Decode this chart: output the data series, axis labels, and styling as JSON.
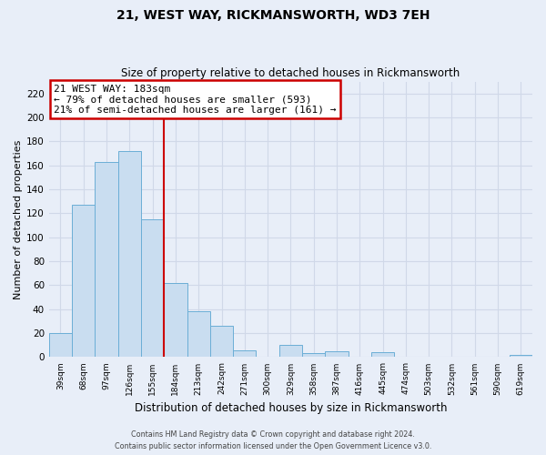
{
  "title": "21, WEST WAY, RICKMANSWORTH, WD3 7EH",
  "subtitle": "Size of property relative to detached houses in Rickmansworth",
  "xlabel": "Distribution of detached houses by size in Rickmansworth",
  "ylabel": "Number of detached properties",
  "bin_labels": [
    "39sqm",
    "68sqm",
    "97sqm",
    "126sqm",
    "155sqm",
    "184sqm",
    "213sqm",
    "242sqm",
    "271sqm",
    "300sqm",
    "329sqm",
    "358sqm",
    "387sqm",
    "416sqm",
    "445sqm",
    "474sqm",
    "503sqm",
    "532sqm",
    "561sqm",
    "590sqm",
    "619sqm"
  ],
  "bar_values": [
    20,
    127,
    163,
    172,
    115,
    62,
    38,
    26,
    6,
    0,
    10,
    3,
    5,
    0,
    4,
    0,
    0,
    0,
    0,
    0,
    2
  ],
  "bar_color": "#c9ddf0",
  "bar_edge_color": "#6baed6",
  "vline_bar_index": 4,
  "ylim": [
    0,
    230
  ],
  "yticks": [
    0,
    20,
    40,
    60,
    80,
    100,
    120,
    140,
    160,
    180,
    200,
    220
  ],
  "annotation_title": "21 WEST WAY: 183sqm",
  "annotation_line1": "← 79% of detached houses are smaller (593)",
  "annotation_line2": "21% of semi-detached houses are larger (161) →",
  "annotation_box_facecolor": "#ffffff",
  "annotation_box_edgecolor": "#cc0000",
  "vline_color": "#cc0000",
  "footer_line1": "Contains HM Land Registry data © Crown copyright and database right 2024.",
  "footer_line2": "Contains public sector information licensed under the Open Government Licence v3.0.",
  "background_color": "#e8eef8",
  "grid_color": "#d0d8e8",
  "fig_width": 6.0,
  "fig_height": 5.0,
  "dpi": 100
}
